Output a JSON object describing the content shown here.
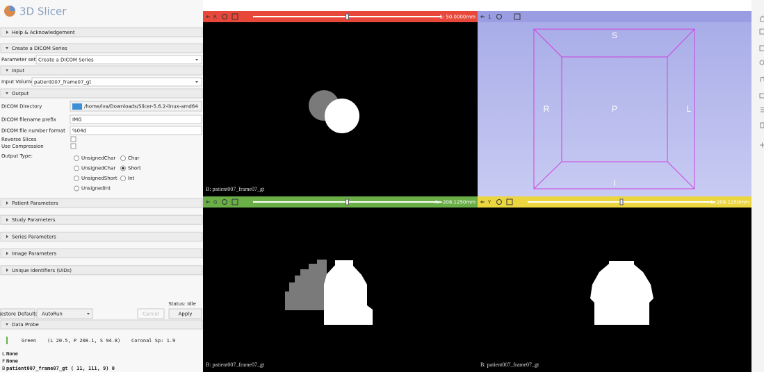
{
  "app": {
    "title": "3D Slicer"
  },
  "module": {
    "help": "Help & Acknowledgement",
    "section": "Create a DICOM Series",
    "parameter_set": {
      "label": "Parameter set:",
      "value": "Create a DICOM Series"
    },
    "input": {
      "header": "Input",
      "volume_label": "Input Volume",
      "volume": "patient007_frame07_gt"
    },
    "output": {
      "header": "Output",
      "fields": [
        {
          "label": "DICOM Directory",
          "value": "/home/iva/Downloads/Slicer-5.6.2-linux-amd64"
        },
        {
          "label": "DICOM filename prefix",
          "value": "IMG"
        },
        {
          "label": "DICOM file number format",
          "value": "%04d"
        }
      ],
      "checkboxes": [
        "Reverse Slices",
        "Use Compression"
      ],
      "output_type_label": "Output Type:",
      "output_types": [
        "UnsignedChar",
        "Char",
        "UnsignedChar",
        "Short",
        "UnsignedShort",
        "Int",
        "UnsignedInt"
      ],
      "selected_output_type": "Short"
    },
    "collapsed_sections": [
      "Patient Parameters",
      "Study Parameters",
      "Series Parameters",
      "Image Parameters",
      "Unique Identifiers (UIDs)"
    ],
    "status": "Status: Idle",
    "buttons": [
      "Restore Defaults",
      "AutoRun",
      "Cancel",
      "Apply"
    ]
  },
  "data_probe": {
    "header": "Data Probe",
    "view": "Green",
    "position": "(L 20.5, P 208.1, S 94.8)",
    "info": "Coronal Sp: 1.9",
    "layers": [
      {
        "key": "L",
        "value": "None"
      },
      {
        "key": "F",
        "value": "None"
      },
      {
        "key": "B",
        "value": "patient007_frame07_gt ( 11, 111,   9) 0"
      }
    ]
  },
  "views": [
    {
      "name": "R",
      "color": "#e8483a",
      "offset": "S: 50.0000mm",
      "volume": "B: patient007_frame07_gt"
    },
    {
      "name": "G",
      "color": "#6aae48",
      "offset": "A: -208.1250mm",
      "volume": "B: patient007_frame07_gt"
    },
    {
      "name": "Y",
      "color": "#ecd640",
      "offset": "L: 208.1250mm",
      "volume": "B: patient007_frame07_gt"
    }
  ],
  "view_3d": {
    "name": "1",
    "color": "#9a9de2",
    "labels": [
      "S",
      "P",
      "R",
      "L",
      "I"
    ]
  }
}
